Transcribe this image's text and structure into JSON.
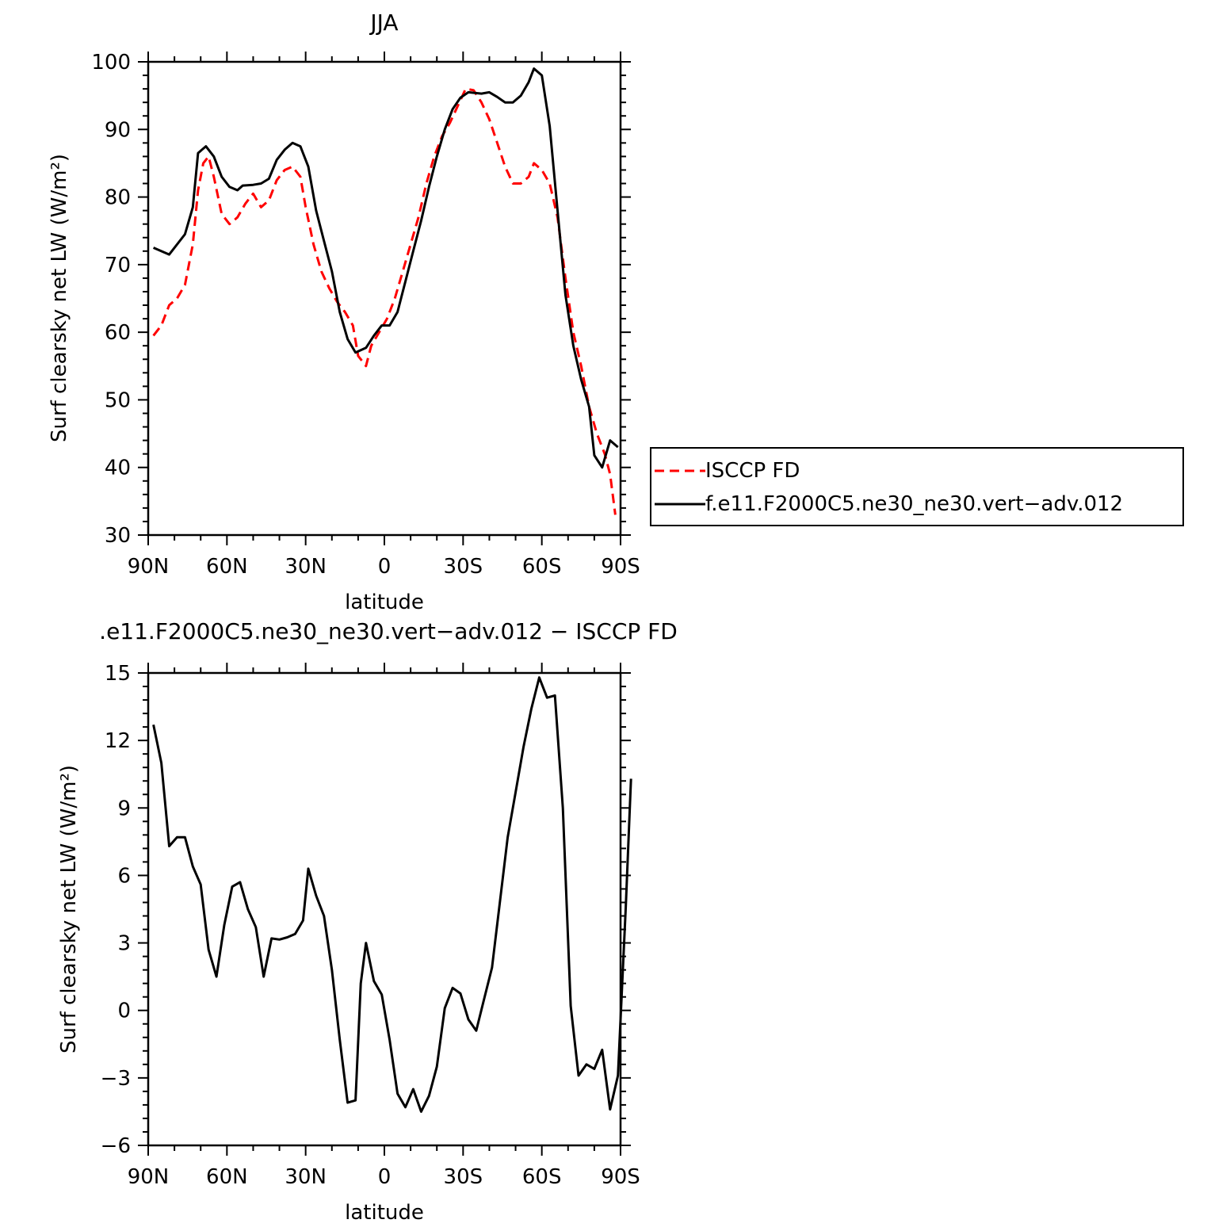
{
  "chart_data": [
    {
      "type": "line",
      "title": "JJA",
      "xlabel": "latitude",
      "ylabel": "Surf clearsky net LW (W/m²)",
      "xlim": [
        90,
        -90
      ],
      "ylim": [
        30,
        100
      ],
      "x_ticks": [
        {
          "value": 90,
          "label": "90N"
        },
        {
          "value": 60,
          "label": "60N"
        },
        {
          "value": 30,
          "label": "30N"
        },
        {
          "value": 0,
          "label": "0"
        },
        {
          "value": -30,
          "label": "30S"
        },
        {
          "value": -60,
          "label": "60S"
        },
        {
          "value": -90,
          "label": "90S"
        }
      ],
      "y_ticks": [
        30,
        40,
        50,
        60,
        70,
        80,
        90,
        100
      ],
      "legend_position": "right",
      "series": [
        {
          "name": "ISCCP FD",
          "color": "#ff0000",
          "dash": true,
          "points": [
            [
              88,
              59.5
            ],
            [
              85,
              61
            ],
            [
              82,
              64
            ],
            [
              79,
              65
            ],
            [
              76,
              67
            ],
            [
              73,
              73
            ],
            [
              71,
              81
            ],
            [
              69,
              85
            ],
            [
              67,
              86
            ],
            [
              65,
              83
            ],
            [
              62,
              77.5
            ],
            [
              59,
              76
            ],
            [
              56,
              77
            ],
            [
              53,
              79
            ],
            [
              50,
              80.5
            ],
            [
              47,
              78.5
            ],
            [
              44,
              79.5
            ],
            [
              41,
              82.5
            ],
            [
              38,
              84
            ],
            [
              35,
              84.5
            ],
            [
              32,
              83
            ],
            [
              30,
              78.5
            ],
            [
              27,
              73
            ],
            [
              24,
              69
            ],
            [
              21,
              66.5
            ],
            [
              18,
              64.5
            ],
            [
              15,
              63
            ],
            [
              12,
              61
            ],
            [
              10,
              56.5
            ],
            [
              7,
              55
            ],
            [
              5,
              58
            ],
            [
              2,
              60
            ],
            [
              -1,
              62
            ],
            [
              -4,
              65
            ],
            [
              -7,
              69
            ],
            [
              -10,
              73
            ],
            [
              -13,
              77
            ],
            [
              -16,
              82
            ],
            [
              -19,
              86
            ],
            [
              -22,
              89
            ],
            [
              -25,
              91
            ],
            [
              -28,
              93.5
            ],
            [
              -31,
              96
            ],
            [
              -34,
              95.8
            ],
            [
              -37,
              94
            ],
            [
              -40,
              91.5
            ],
            [
              -43,
              88
            ],
            [
              -46,
              84.5
            ],
            [
              -49,
              82
            ],
            [
              -52,
              82
            ],
            [
              -55,
              83
            ],
            [
              -57,
              85
            ],
            [
              -60,
              84
            ],
            [
              -63,
              82
            ],
            [
              -66,
              77
            ],
            [
              -69,
              68
            ],
            [
              -72,
              60
            ],
            [
              -75,
              55
            ],
            [
              -78,
              49
            ],
            [
              -81,
              45
            ],
            [
              -84,
              42
            ],
            [
              -86,
              39
            ],
            [
              -88,
              33
            ]
          ]
        },
        {
          "name": "f.e11.F2000C5.ne30_ne30.vert−adv.012",
          "color": "#000000",
          "dash": false,
          "points": [
            [
              88,
              72.5
            ],
            [
              82,
              71.5
            ],
            [
              76,
              74.5
            ],
            [
              73,
              78.5
            ],
            [
              71,
              86.5
            ],
            [
              68,
              87.5
            ],
            [
              65,
              86
            ],
            [
              62,
              83
            ],
            [
              59,
              81.5
            ],
            [
              56,
              81
            ],
            [
              54,
              81.7
            ],
            [
              50,
              81.8
            ],
            [
              47,
              82
            ],
            [
              44,
              82.7
            ],
            [
              41,
              85.5
            ],
            [
              38,
              87
            ],
            [
              35,
              88
            ],
            [
              32,
              87.5
            ],
            [
              29,
              84.5
            ],
            [
              26,
              78
            ],
            [
              23,
              73.5
            ],
            [
              20,
              69
            ],
            [
              17,
              63
            ],
            [
              14,
              59
            ],
            [
              11,
              57
            ],
            [
              7,
              57.7
            ],
            [
              4,
              59.5
            ],
            [
              1,
              61
            ],
            [
              -2,
              61
            ],
            [
              -5,
              63
            ],
            [
              -8,
              67.5
            ],
            [
              -11,
              72
            ],
            [
              -14,
              76.5
            ],
            [
              -17,
              81.5
            ],
            [
              -20,
              86
            ],
            [
              -23,
              90
            ],
            [
              -26,
              93
            ],
            [
              -29,
              94.7
            ],
            [
              -32,
              95.5
            ],
            [
              -37,
              95.3
            ],
            [
              -40,
              95.5
            ],
            [
              -43,
              94.8
            ],
            [
              -46,
              94
            ],
            [
              -49,
              94
            ],
            [
              -52,
              95
            ],
            [
              -55,
              97
            ],
            [
              -57,
              99
            ],
            [
              -60,
              98
            ],
            [
              -63,
              90.5
            ],
            [
              -66,
              78
            ],
            [
              -69,
              65.5
            ],
            [
              -72,
              58
            ],
            [
              -75,
              53
            ],
            [
              -78,
              49
            ],
            [
              -80,
              41.8
            ],
            [
              -83,
              40
            ],
            [
              -86,
              44
            ],
            [
              -89,
              43
            ]
          ]
        }
      ]
    },
    {
      "type": "line",
      "title": ".e11.F2000C5.ne30_ne30.vert−adv.012 − ISCCP FD",
      "xlabel": "latitude",
      "ylabel": "Surf clearsky net LW (W/m²)",
      "xlim": [
        90,
        -90
      ],
      "ylim": [
        -6,
        15
      ],
      "x_ticks": [
        {
          "value": 90,
          "label": "90N"
        },
        {
          "value": 60,
          "label": "60N"
        },
        {
          "value": 30,
          "label": "30N"
        },
        {
          "value": 0,
          "label": "0"
        },
        {
          "value": -30,
          "label": "30S"
        },
        {
          "value": -60,
          "label": "60S"
        },
        {
          "value": -90,
          "label": "90S"
        }
      ],
      "y_ticks": [
        -6,
        -3,
        0,
        3,
        6,
        9,
        12,
        15
      ],
      "series": [
        {
          "color": "#000000",
          "dash": false,
          "points": [
            [
              88,
              12.7
            ],
            [
              85,
              11
            ],
            [
              82,
              7.3
            ],
            [
              79,
              7.7
            ],
            [
              76,
              7.7
            ],
            [
              73,
              6.4
            ],
            [
              70,
              5.6
            ],
            [
              67,
              2.7
            ],
            [
              64,
              1.5
            ],
            [
              61,
              3.8
            ],
            [
              58,
              5.5
            ],
            [
              55,
              5.7
            ],
            [
              52,
              4.5
            ],
            [
              49,
              3.7
            ],
            [
              46,
              1.5
            ],
            [
              43,
              3.2
            ],
            [
              40,
              3.15
            ],
            [
              37,
              3.25
            ],
            [
              34,
              3.4
            ],
            [
              31,
              4
            ],
            [
              29,
              6.3
            ],
            [
              26,
              5.1
            ],
            [
              23,
              4.2
            ],
            [
              20,
              1.8
            ],
            [
              17,
              -1.3
            ],
            [
              14,
              -4.1
            ],
            [
              11,
              -4
            ],
            [
              9,
              1.2
            ],
            [
              7,
              3
            ],
            [
              4,
              1.3
            ],
            [
              1,
              0.7
            ],
            [
              -2,
              -1.3
            ],
            [
              -5,
              -3.7
            ],
            [
              -8,
              -4.3
            ],
            [
              -11,
              -3.5
            ],
            [
              -14,
              -4.5
            ],
            [
              -17,
              -3.8
            ],
            [
              -20,
              -2.5
            ],
            [
              -23,
              0.1
            ],
            [
              -26,
              1
            ],
            [
              -29,
              0.75
            ],
            [
              -32,
              -0.4
            ],
            [
              -35,
              -0.9
            ],
            [
              -38,
              0.5
            ],
            [
              -41,
              1.9
            ],
            [
              -44,
              4.8
            ],
            [
              -47,
              7.7
            ],
            [
              -50,
              9.7
            ],
            [
              -53,
              11.7
            ],
            [
              -56,
              13.4
            ],
            [
              -59,
              14.8
            ],
            [
              -62,
              13.9
            ],
            [
              -65,
              14
            ],
            [
              -68,
              9
            ],
            [
              -71,
              0.2
            ],
            [
              -74,
              -2.9
            ],
            [
              -77,
              -2.4
            ],
            [
              -80,
              -2.6
            ],
            [
              -83,
              -1.75
            ],
            [
              -86,
              -4.4
            ],
            [
              -89,
              -2.9
            ],
            [
              -92,
              4.6
            ],
            [
              -94,
              10.3
            ]
          ]
        }
      ]
    }
  ]
}
